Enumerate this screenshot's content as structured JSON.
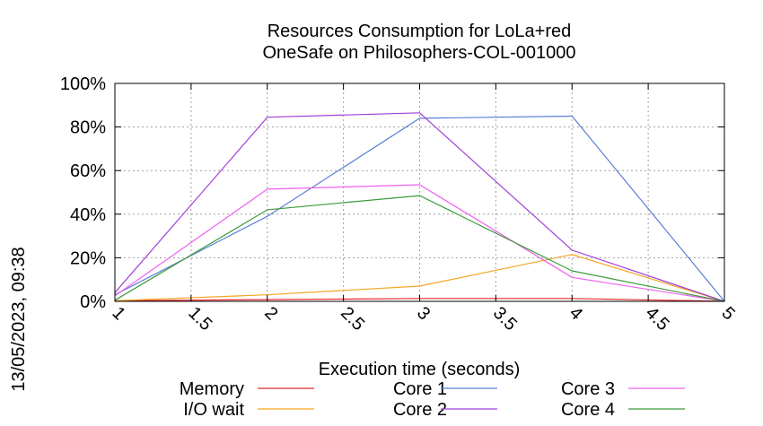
{
  "chart_data": {
    "type": "line",
    "title_line1": "Resources Consumption for LoLa+red",
    "title_line2": "OneSafe on Philosophers-COL-001000",
    "xlabel": "Execution time (seconds)",
    "side_label": "13/05/2023, 09:38",
    "xlim": [
      1,
      5
    ],
    "ylim": [
      0,
      100
    ],
    "x_ticks": [
      "1",
      "1.5",
      "2",
      "2.5",
      "3",
      "3.5",
      "4",
      "4.5",
      "5"
    ],
    "y_ticks": [
      "0%",
      "20%",
      "40%",
      "60%",
      "80%",
      "100%"
    ],
    "grid": true,
    "series": [
      {
        "name": "Memory",
        "color": "#e8292b",
        "x": [
          1,
          2,
          3,
          4,
          5
        ],
        "y": [
          0.3,
          0.8,
          1.3,
          1.3,
          0
        ]
      },
      {
        "name": "I/O wait",
        "color": "#f5a623",
        "x": [
          1,
          2,
          3,
          4,
          5
        ],
        "y": [
          0.3,
          3.0,
          7.0,
          21.5,
          0
        ]
      },
      {
        "name": "Core 1",
        "color": "#5b7fd6",
        "x": [
          1,
          2,
          3,
          4,
          5
        ],
        "y": [
          3,
          39,
          84,
          85,
          0
        ]
      },
      {
        "name": "Core 2",
        "color": "#a040d8",
        "x": [
          1,
          2,
          3,
          4,
          5
        ],
        "y": [
          4,
          84.5,
          86.5,
          23.5,
          0
        ]
      },
      {
        "name": "Core 3",
        "color": "#f060f0",
        "x": [
          1,
          2,
          3,
          4,
          5
        ],
        "y": [
          2.5,
          51.5,
          53.5,
          11,
          0
        ]
      },
      {
        "name": "Core 4",
        "color": "#3a9a3a",
        "x": [
          1,
          2,
          3,
          4,
          5
        ],
        "y": [
          0.5,
          42,
          48.5,
          14,
          0
        ]
      }
    ]
  }
}
